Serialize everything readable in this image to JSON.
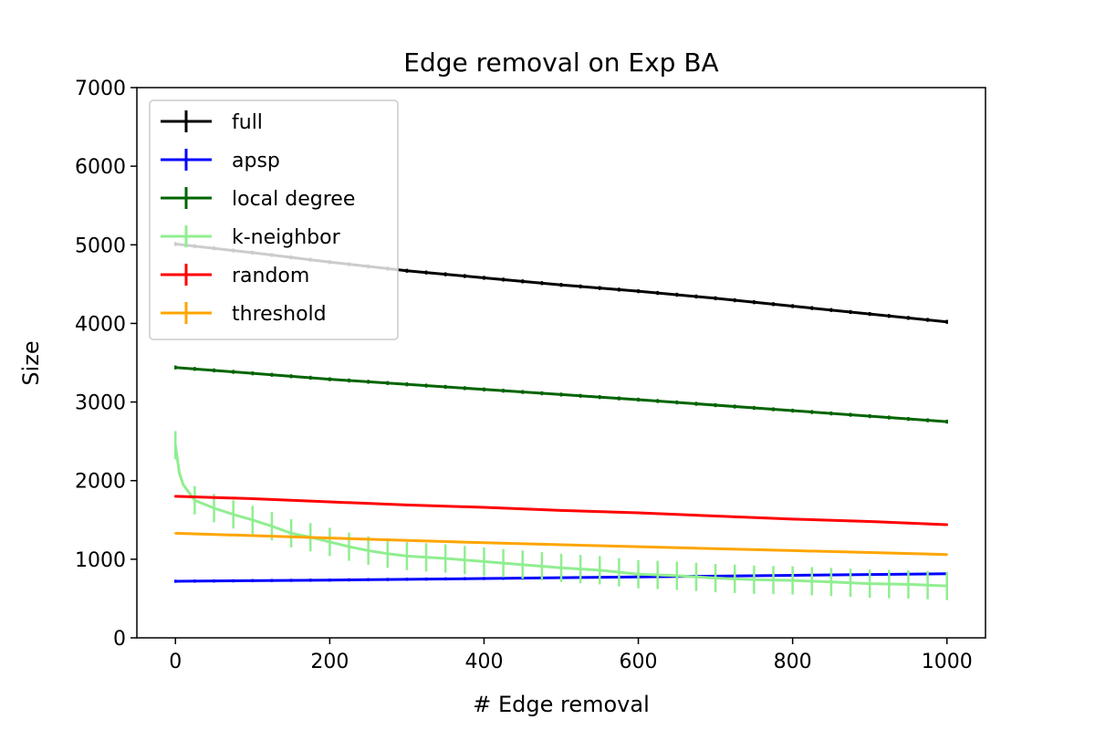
{
  "chart_data": {
    "type": "line",
    "title": "Edge removal on Exp BA",
    "xlabel": "# Edge removal",
    "ylabel": "Size",
    "xlim": [
      -50,
      1050
    ],
    "ylim": [
      0,
      7000
    ],
    "xticks": [
      0,
      200,
      400,
      600,
      800,
      1000
    ],
    "yticks": [
      0,
      1000,
      2000,
      3000,
      4000,
      5000,
      6000,
      7000
    ],
    "grid": false,
    "legend_position": "upper-left",
    "series": [
      {
        "name": "full",
        "color": "#000000",
        "x": [
          0,
          100,
          200,
          300,
          400,
          500,
          600,
          700,
          800,
          900,
          1000
        ],
        "y": [
          5010,
          4900,
          4780,
          4670,
          4580,
          4490,
          4410,
          4320,
          4220,
          4120,
          4020
        ],
        "error": 25
      },
      {
        "name": "apsp",
        "color": "#0000ff",
        "x": [
          0,
          200,
          400,
          600,
          800,
          1000
        ],
        "y": [
          720,
          735,
          755,
          775,
          795,
          815
        ],
        "error": 20
      },
      {
        "name": "local degree",
        "color": "#006400",
        "x": [
          0,
          200,
          400,
          600,
          800,
          1000
        ],
        "y": [
          3440,
          3290,
          3160,
          3030,
          2890,
          2750
        ],
        "error": 25
      },
      {
        "name": "k-neighbor",
        "color": "#90ee90",
        "x": [
          0,
          5,
          10,
          25,
          50,
          75,
          100,
          125,
          150,
          175,
          200,
          225,
          250,
          275,
          300,
          350,
          400,
          450,
          500,
          550,
          600,
          650,
          700,
          750,
          800,
          850,
          900,
          950,
          1000
        ],
        "y": [
          2450,
          2100,
          1950,
          1750,
          1650,
          1570,
          1500,
          1420,
          1330,
          1280,
          1220,
          1160,
          1110,
          1070,
          1040,
          1010,
          970,
          930,
          890,
          860,
          810,
          790,
          760,
          740,
          730,
          710,
          690,
          680,
          660
        ],
        "error": 180
      },
      {
        "name": "random",
        "color": "#ff0000",
        "x": [
          0,
          100,
          200,
          300,
          400,
          500,
          600,
          700,
          800,
          900,
          1000
        ],
        "y": [
          1800,
          1770,
          1730,
          1690,
          1660,
          1620,
          1590,
          1550,
          1510,
          1480,
          1440
        ],
        "error": 15
      },
      {
        "name": "threshold",
        "color": "#ffa500",
        "x": [
          0,
          200,
          400,
          600,
          800,
          1000
        ],
        "y": [
          1330,
          1270,
          1210,
          1160,
          1110,
          1060
        ],
        "error": 10
      }
    ]
  }
}
